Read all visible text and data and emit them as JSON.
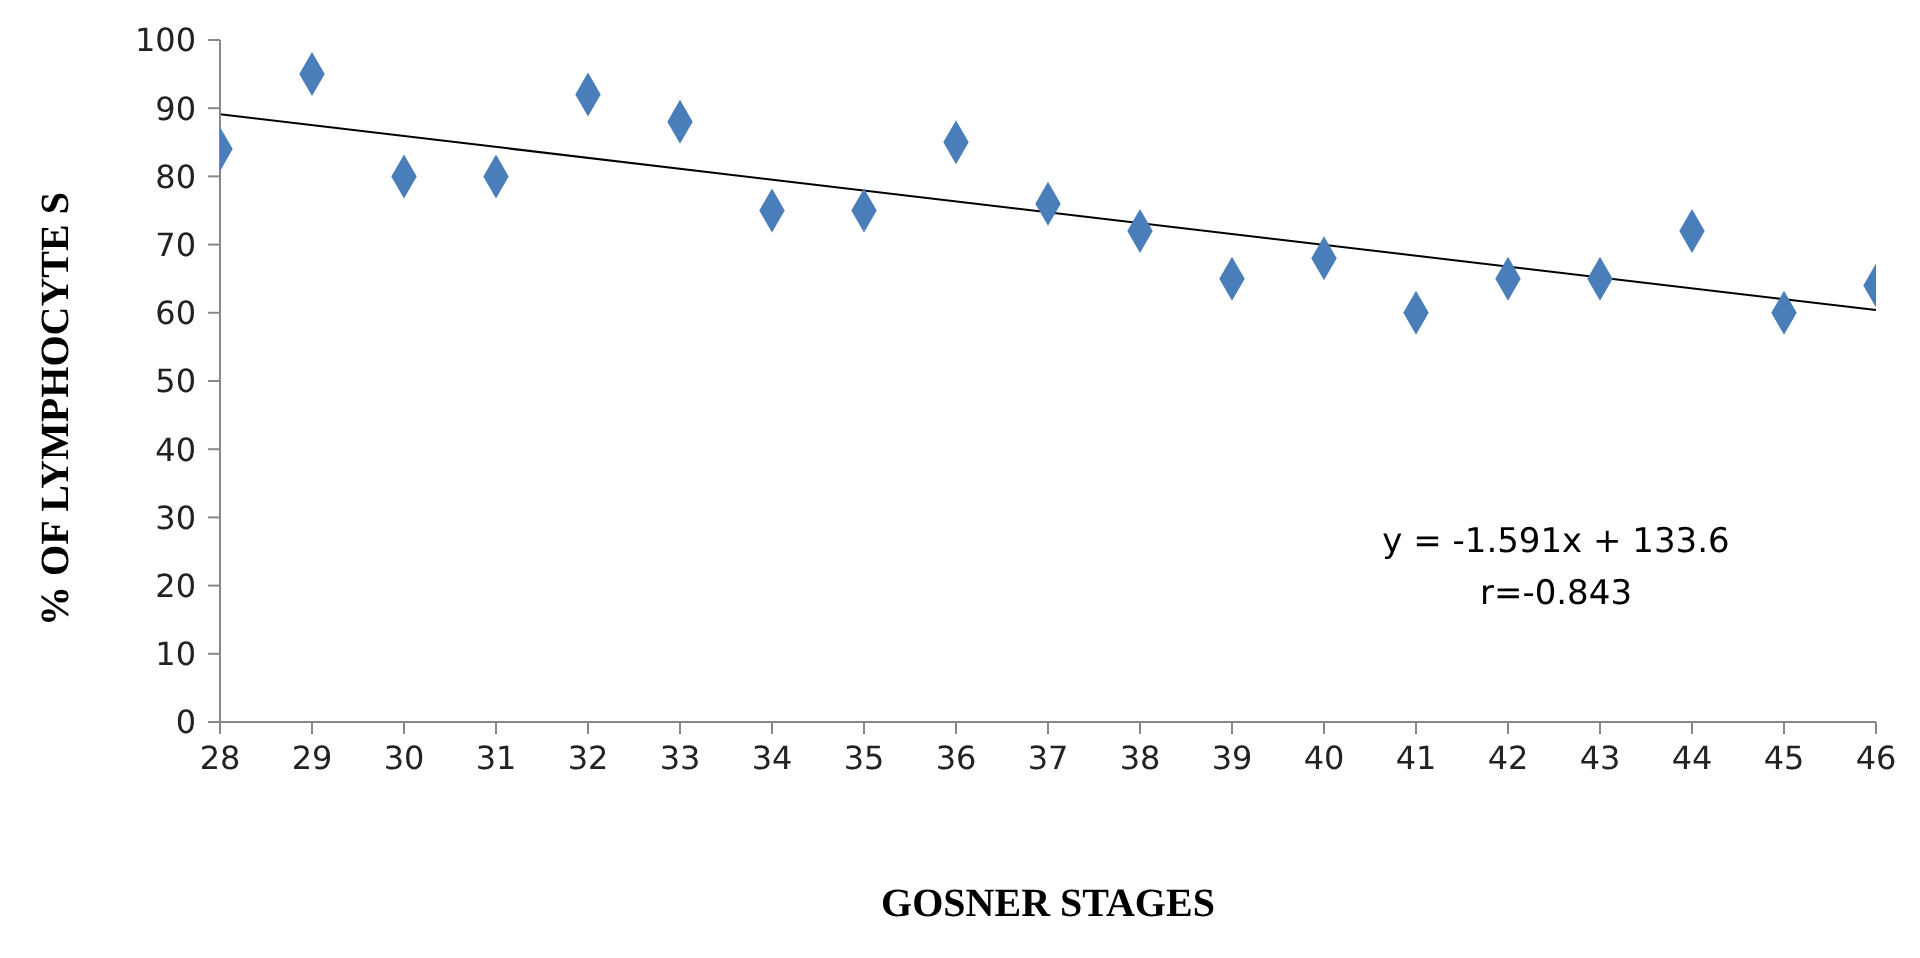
{
  "chart_data": {
    "type": "scatter",
    "xlabel": "GOSNER STAGES",
    "ylabel": "% OF LYMPHOCYTE S",
    "x": [
      28,
      29,
      30,
      31,
      32,
      33,
      34,
      35,
      36,
      37,
      38,
      39,
      40,
      41,
      42,
      43,
      44,
      45,
      46
    ],
    "series": [
      {
        "color": "#4a7ebb",
        "marker": "diamond",
        "values": [
          84,
          95,
          80,
          80,
          92,
          88,
          75,
          75,
          85,
          76,
          72,
          65,
          68,
          60,
          65,
          65,
          72,
          60,
          64
        ]
      },
      {
        "type": "line",
        "color": "#000000",
        "line_style": "solid",
        "marker": "none",
        "x": [
          28,
          46
        ],
        "values": [
          89.1,
          60.4
        ]
      }
    ],
    "xlim": [
      28,
      46
    ],
    "xticks": [
      28,
      29,
      30,
      31,
      32,
      33,
      34,
      35,
      36,
      37,
      38,
      39,
      40,
      41,
      42,
      43,
      44,
      45,
      46
    ],
    "ylim": [
      0,
      100
    ],
    "yticks": [
      0,
      10,
      20,
      30,
      40,
      50,
      60,
      70,
      80,
      90,
      100
    ],
    "grid": false,
    "annotations": [
      "y = -1.591x + 133.6",
      "r=-0.843"
    ]
  }
}
